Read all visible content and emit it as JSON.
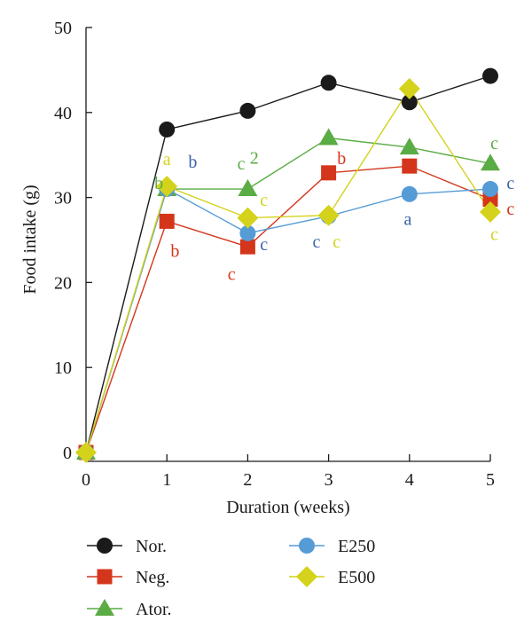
{
  "chart_data": {
    "type": "line",
    "xlabel": "Duration (weeks)",
    "ylabel": "Food intake (g)",
    "x": [
      0,
      1,
      2,
      3,
      4,
      5
    ],
    "xlim": [
      0,
      5
    ],
    "ylim": [
      0,
      50
    ],
    "xticks": [
      "0",
      "1",
      "2",
      "3",
      "4",
      "5"
    ],
    "yticks": [
      "0",
      "10",
      "20",
      "30",
      "40",
      "50"
    ],
    "grid": false,
    "legend_position": "bottom",
    "series": [
      {
        "name": "Nor.",
        "key": "nor",
        "color": "#1a1a1a",
        "marker": "circle",
        "values": [
          0,
          38.0,
          40.2,
          43.5,
          41.2,
          44.3
        ]
      },
      {
        "name": "Neg.",
        "key": "neg",
        "color": "#d4361b",
        "marker": "square",
        "values": [
          0,
          27.2,
          24.2,
          32.9,
          33.7,
          29.8
        ]
      },
      {
        "name": "Ator.",
        "key": "ator",
        "color": "#5aac44",
        "marker": "triangle",
        "values": [
          0,
          31.0,
          31.0,
          37.0,
          35.9,
          34.0
        ]
      },
      {
        "name": "E250",
        "key": "e250",
        "color": "#559bd6",
        "marker": "circle",
        "values": [
          0,
          31.0,
          25.8,
          27.8,
          30.4,
          31.0
        ]
      },
      {
        "name": "E500",
        "key": "e500",
        "color": "#d4d21a",
        "marker": "diamond",
        "values": [
          0,
          31.3,
          27.6,
          27.9,
          42.8,
          28.3
        ]
      }
    ],
    "annotations": [
      {
        "text": "b",
        "x": 0.9,
        "y": 31.0,
        "color": "#5aac44"
      },
      {
        "text": "a",
        "x": 1.0,
        "y": 33.8,
        "color": "#d4d21a"
      },
      {
        "text": "b",
        "x": 1.32,
        "y": 33.5,
        "color": "#3c63a8"
      },
      {
        "text": "b",
        "x": 1.1,
        "y": 23.0,
        "color": "#d4361b"
      },
      {
        "text": "c",
        "x": 1.92,
        "y": 33.3,
        "color": "#5aac44"
      },
      {
        "text": "2",
        "x": 2.08,
        "y": 34.0,
        "color": "#5aac44"
      },
      {
        "text": "c",
        "x": 2.2,
        "y": 29.0,
        "color": "#d4d21a"
      },
      {
        "text": "c",
        "x": 2.2,
        "y": 23.8,
        "color": "#3c63a8"
      },
      {
        "text": "c",
        "x": 1.8,
        "y": 20.3,
        "color": "#d4361b"
      },
      {
        "text": "b",
        "x": 3.16,
        "y": 33.9,
        "color": "#d4361b"
      },
      {
        "text": "c",
        "x": 2.85,
        "y": 24.1,
        "color": "#3c63a8"
      },
      {
        "text": "c",
        "x": 3.1,
        "y": 24.1,
        "color": "#d4d21a"
      },
      {
        "text": "a",
        "x": 3.98,
        "y": 26.8,
        "color": "#3c63a8"
      },
      {
        "text": "c",
        "x": 5.05,
        "y": 35.7,
        "color": "#5aac44"
      },
      {
        "text": "c",
        "x": 5.25,
        "y": 31.0,
        "color": "#3c63a8"
      },
      {
        "text": "c",
        "x": 5.25,
        "y": 28.0,
        "color": "#d4361b"
      },
      {
        "text": "c",
        "x": 5.05,
        "y": 25.0,
        "color": "#d4d21a"
      }
    ]
  }
}
